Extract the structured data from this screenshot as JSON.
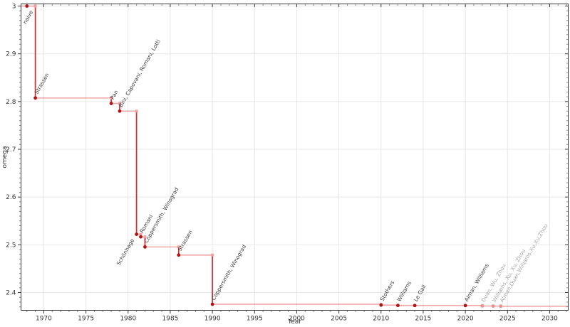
{
  "chart_data": {
    "type": "line",
    "variant": "step-post",
    "title": "",
    "xlabel": "Year",
    "ylabel": "omega",
    "xlim": [
      1967.3,
      2032.2
    ],
    "ylim": [
      2.3628,
      3.0045
    ],
    "grid": true,
    "legend": "none",
    "x_major_ticks": [
      1970,
      1975,
      1980,
      1985,
      1990,
      1995,
      2000,
      2005,
      2010,
      2015,
      2020,
      2025,
      2030
    ],
    "x_minor_step": 1,
    "y_major_ticks": [
      2.4,
      2.5,
      2.6,
      2.7,
      2.8,
      2.9,
      3
    ],
    "y_tick_labels": [
      "2.4",
      "2.5",
      "2.6",
      "2.7",
      "2.8",
      "2.9",
      "3"
    ],
    "y_minor_step": 0.01,
    "points": [
      {
        "year": 1968,
        "omega": 3.0,
        "label": "naive",
        "label_side": "lower",
        "label_anchor_year": 1969,
        "muted": false
      },
      {
        "year": 1969,
        "omega": 2.8074,
        "label": "Strassen",
        "label_side": "upper",
        "muted": false
      },
      {
        "year": 1978,
        "omega": 2.796,
        "label": "Pan",
        "label_side": "upper",
        "muted": false
      },
      {
        "year": 1979,
        "omega": 2.7799,
        "label": "Bini, Capovani, Romani, Lotti",
        "label_side": "upper",
        "muted": false
      },
      {
        "year": 1981,
        "omega": 2.522,
        "label": "Schönhage",
        "label_side": "lower",
        "muted": false
      },
      {
        "year": 1981.5,
        "omega": 2.5166,
        "label": "Romani",
        "label_side": "upper",
        "muted": false
      },
      {
        "year": 1982,
        "omega": 2.4955,
        "label": "Coppersmith, Winograd",
        "label_side": "upper",
        "muted": false
      },
      {
        "year": 1986,
        "omega": 2.4785,
        "label": "Strassen",
        "label_side": "upper",
        "muted": false
      },
      {
        "year": 1990,
        "omega": 2.3755,
        "label": "Coppersmith, Winograd",
        "label_side": "upper",
        "muted": false
      },
      {
        "year": 2010,
        "omega": 2.3737,
        "label": "Stothers",
        "label_side": "upper",
        "muted": false
      },
      {
        "year": 2012,
        "omega": 2.3729,
        "label": "Williams",
        "label_side": "upper",
        "muted": false
      },
      {
        "year": 2014,
        "omega": 2.3728639,
        "label": "Le Gall",
        "label_side": "upper",
        "muted": false
      },
      {
        "year": 2020,
        "omega": 2.3728596,
        "label": "Alman, Williams",
        "label_side": "upper",
        "muted": false
      },
      {
        "year": 2022,
        "omega": 2.371866,
        "label": "Duan, Wu, Zhou",
        "label_side": "upper",
        "muted": true
      },
      {
        "year": 2023.3,
        "omega": 2.371552,
        "label": "Williams, Xu, Xu, Zhou",
        "label_side": "upper",
        "muted": true
      },
      {
        "year": 2024.2,
        "omega": 2.371339,
        "label": "Alman,Duan,Williams,Xu,Xu,Zhou",
        "label_side": "upper",
        "muted": true
      }
    ],
    "colors": {
      "step_line": "#e03c3c",
      "step_line_opacity": 0.45,
      "drop_line": "#dd2626",
      "point_marker": "#b01414",
      "corner_marker": "#f2a0a0",
      "muted_marker": "#ef8f8f",
      "label_text": "#3c3c3c",
      "muted_label_text": "#a6a6a6",
      "grid": "#e7e7e7",
      "spine": "#3a3a3a",
      "tick": "#3a3a3a",
      "tick_label": "#333333"
    }
  }
}
